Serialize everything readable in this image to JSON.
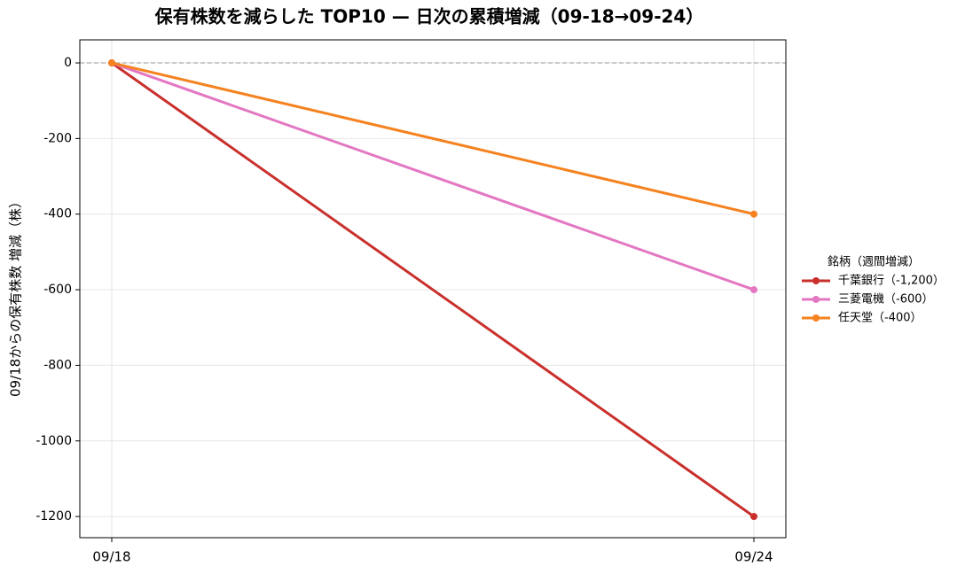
{
  "chart_data": {
    "type": "line",
    "title": "保有株数を減らした TOP10 — 日次の累積増減（09-18→09-24）",
    "y_label": "09/18からの保有株数 増減（株）",
    "categories": [
      "09/18",
      "09/24"
    ],
    "series": [
      {
        "name": "千葉銀行（-1,200）",
        "color": "#c9302c",
        "values": [
          0,
          -1200
        ]
      },
      {
        "name": "三菱電機（-600）",
        "color": "#e377c2",
        "values": [
          0,
          -600
        ]
      },
      {
        "name": "任天堂（-400）",
        "color": "#f5821f",
        "values": [
          0,
          -400
        ]
      }
    ],
    "legend_title": "銘柄（週間増減）",
    "legend_position": "right",
    "ylim": [
      -1256,
      61
    ],
    "yticks": [
      0,
      -200,
      -400,
      -600,
      -800,
      -1000,
      -1200
    ],
    "reference_line": 0,
    "grid": true
  }
}
